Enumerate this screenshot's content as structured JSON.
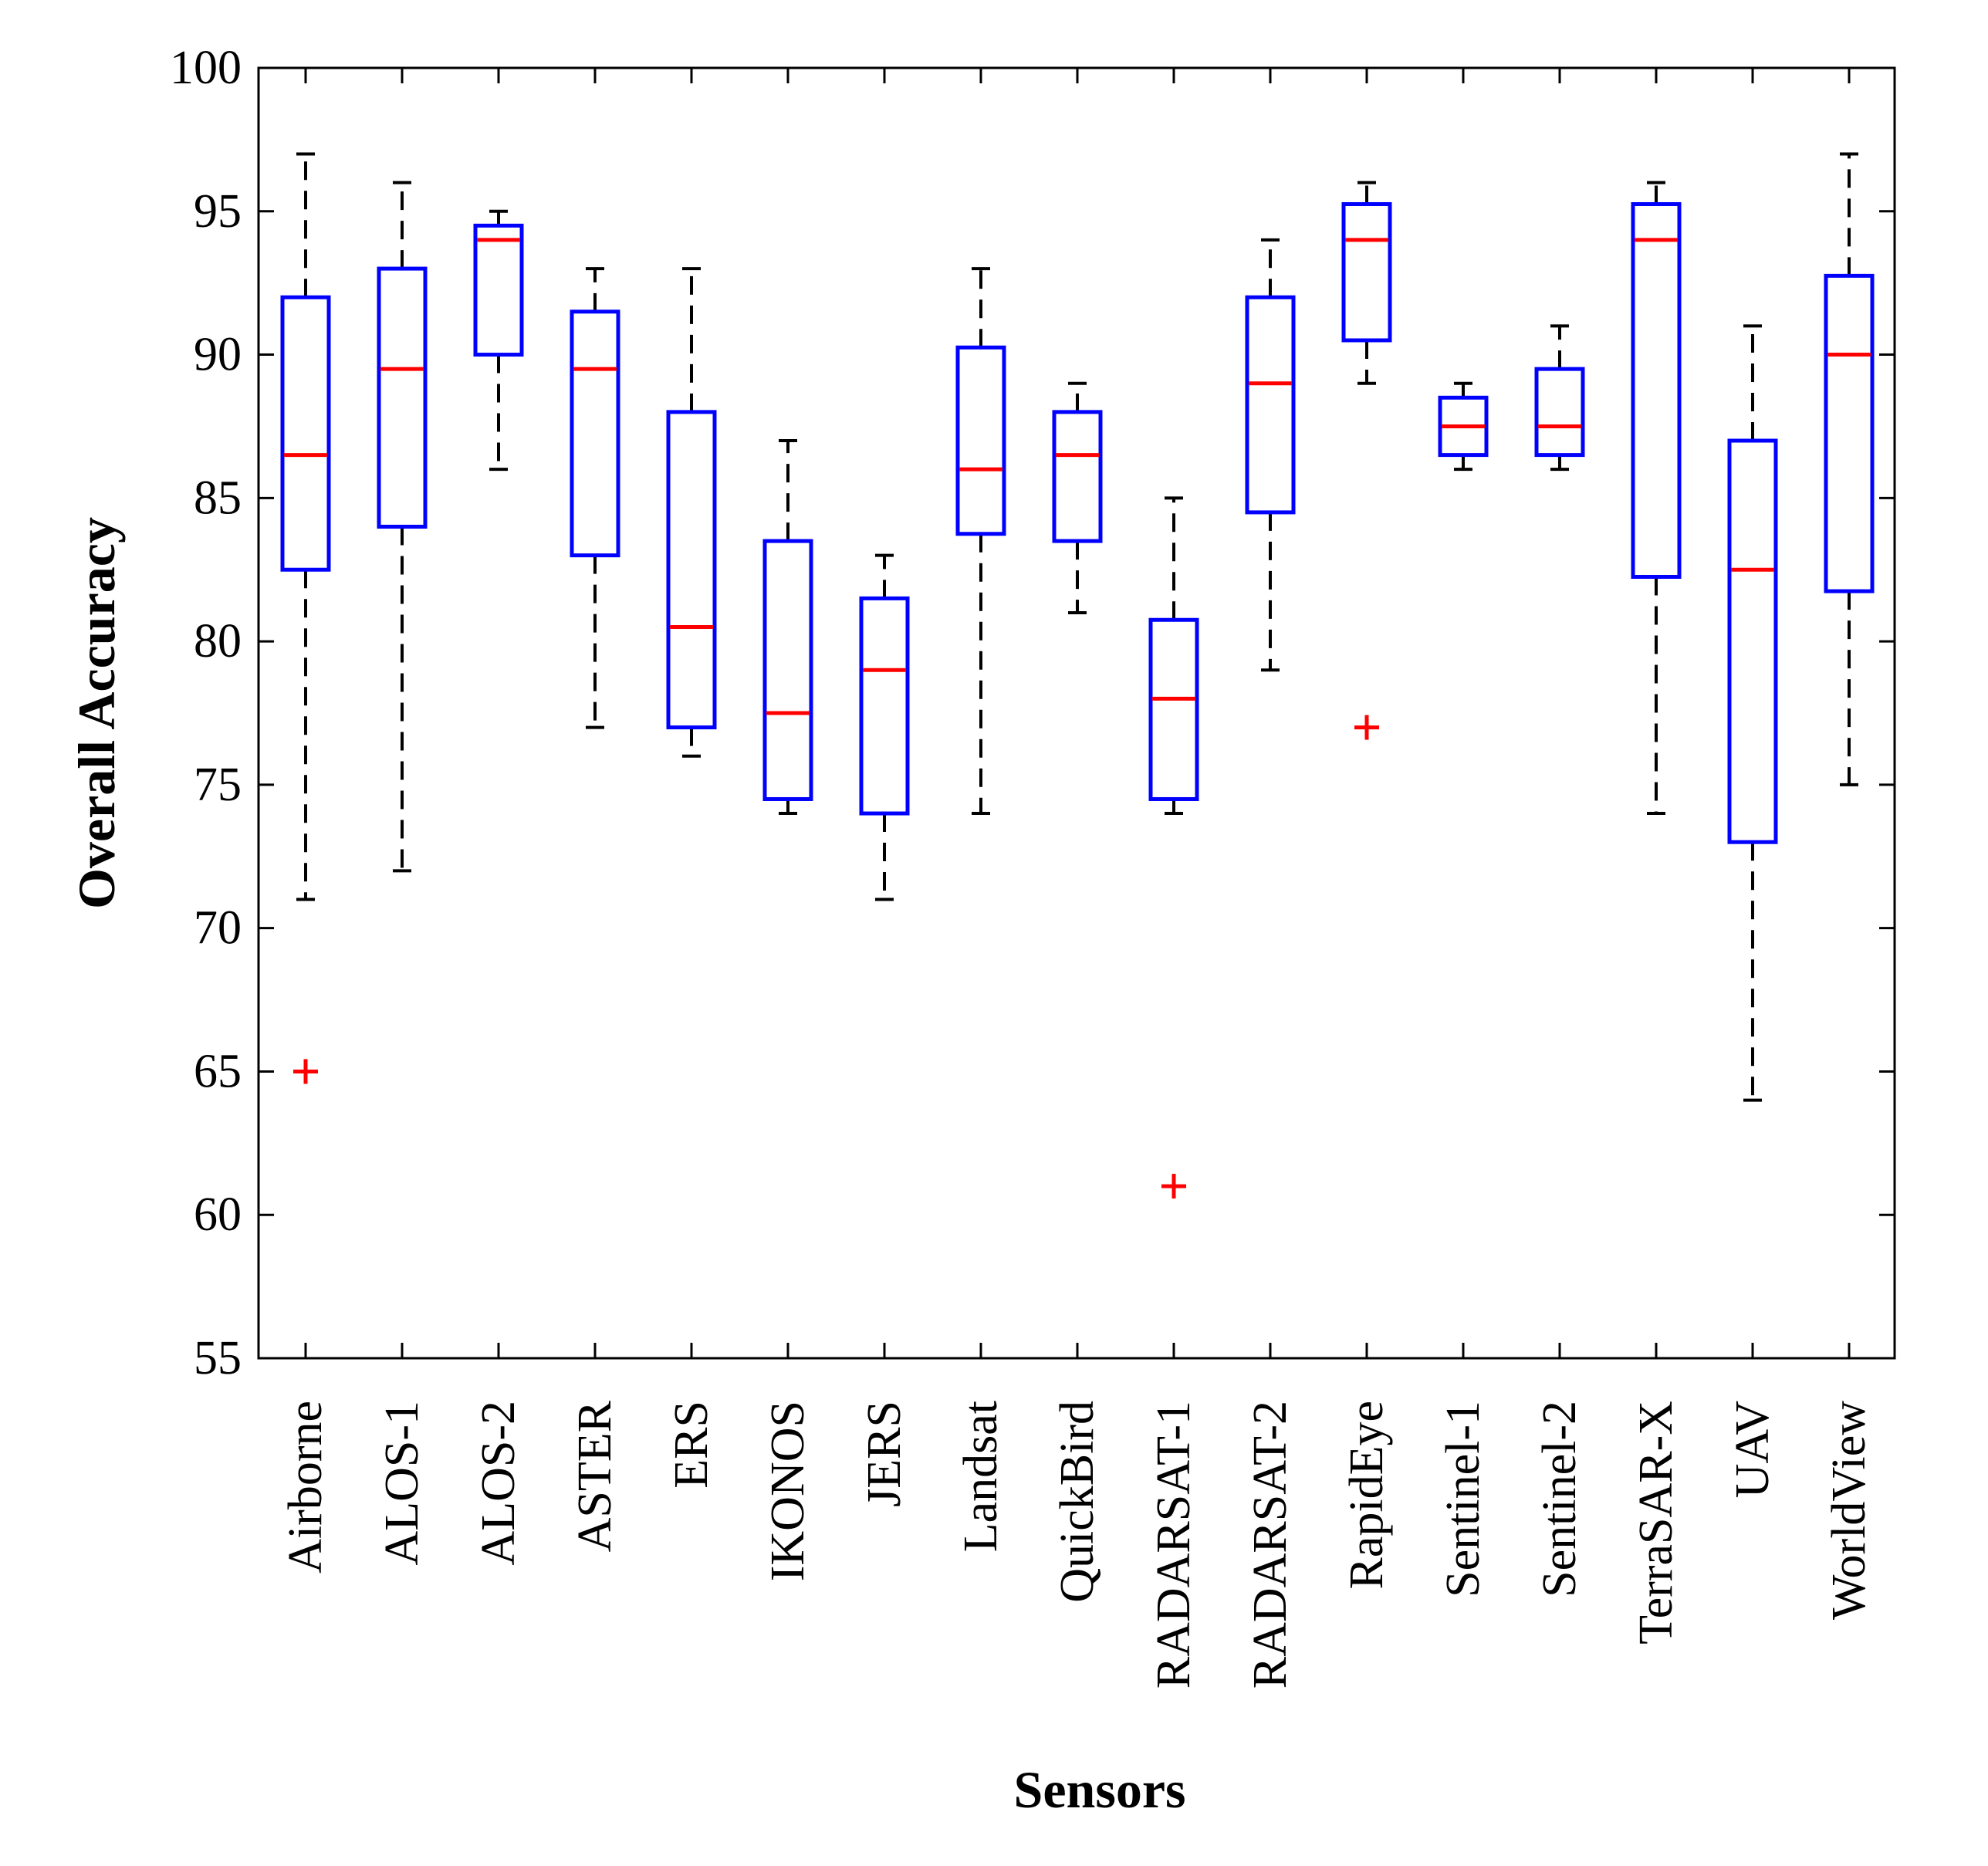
{
  "chart_data": {
    "type": "boxplot",
    "title": "",
    "xlabel": "Sensors",
    "ylabel": "Overall Accuracy",
    "ylim": [
      55,
      100
    ],
    "yticks": [
      55,
      60,
      65,
      70,
      75,
      80,
      85,
      90,
      95,
      100
    ],
    "grid": false,
    "colors": {
      "box": "#0000ff",
      "median": "#ff0000",
      "whisker": "#000000",
      "outlier": "#ff0000",
      "axis": "#000000"
    },
    "categories": [
      "Airborne",
      "ALOS-1",
      "ALOS-2",
      "ASTER",
      "ERS",
      "IKONOS",
      "JERS",
      "Landsat",
      "QuickBird",
      "RADARSAT-1",
      "RADARSAT-2",
      "RapidEye",
      "Sentinel-1",
      "Sentinel-2",
      "TerraSAR-X",
      "UAV",
      "WorldView"
    ],
    "boxes": [
      {
        "name": "Airborne",
        "min": 71,
        "q1": 82.5,
        "median": 86.5,
        "q3": 92,
        "max": 97,
        "outliers": [
          65
        ]
      },
      {
        "name": "ALOS-1",
        "min": 72,
        "q1": 84,
        "median": 89.5,
        "q3": 93,
        "max": 96,
        "outliers": []
      },
      {
        "name": "ALOS-2",
        "min": 86,
        "q1": 90,
        "median": 94,
        "q3": 94.5,
        "max": 95,
        "outliers": []
      },
      {
        "name": "ASTER",
        "min": 77,
        "q1": 83,
        "median": 89.5,
        "q3": 91.5,
        "max": 93,
        "outliers": []
      },
      {
        "name": "ERS",
        "min": 76,
        "q1": 77,
        "median": 80.5,
        "q3": 88,
        "max": 93,
        "outliers": []
      },
      {
        "name": "IKONOS",
        "min": 74,
        "q1": 74.5,
        "median": 77.5,
        "q3": 83.5,
        "max": 87,
        "outliers": []
      },
      {
        "name": "JERS",
        "min": 71,
        "q1": 74,
        "median": 79,
        "q3": 81.5,
        "max": 83,
        "outliers": []
      },
      {
        "name": "Landsat",
        "min": 74,
        "q1": 83.75,
        "median": 86,
        "q3": 90.25,
        "max": 93,
        "outliers": []
      },
      {
        "name": "QuickBird",
        "min": 81,
        "q1": 83.5,
        "median": 86.5,
        "q3": 88,
        "max": 89,
        "outliers": []
      },
      {
        "name": "RADARSAT-1",
        "min": 74,
        "q1": 74.5,
        "median": 78,
        "q3": 80.75,
        "max": 85,
        "outliers": [
          61
        ]
      },
      {
        "name": "RADARSAT-2",
        "min": 79,
        "q1": 84.5,
        "median": 89,
        "q3": 92,
        "max": 94,
        "outliers": []
      },
      {
        "name": "RapidEye",
        "min": 89,
        "q1": 90.5,
        "median": 94,
        "q3": 95.25,
        "max": 96,
        "outliers": [
          77
        ]
      },
      {
        "name": "Sentinel-1",
        "min": 86,
        "q1": 86.5,
        "median": 87.5,
        "q3": 88.5,
        "max": 89,
        "outliers": []
      },
      {
        "name": "Sentinel-2",
        "min": 86,
        "q1": 86.5,
        "median": 87.5,
        "q3": 89.5,
        "max": 91,
        "outliers": []
      },
      {
        "name": "TerraSAR-X",
        "min": 74,
        "q1": 82.25,
        "median": 94,
        "q3": 95.25,
        "max": 96,
        "outliers": []
      },
      {
        "name": "UAV",
        "min": 64,
        "q1": 73,
        "median": 82.5,
        "q3": 87,
        "max": 91,
        "outliers": []
      },
      {
        "name": "WorldView",
        "min": 75,
        "q1": 81.75,
        "median": 90,
        "q3": 92.75,
        "max": 97,
        "outliers": []
      }
    ]
  }
}
